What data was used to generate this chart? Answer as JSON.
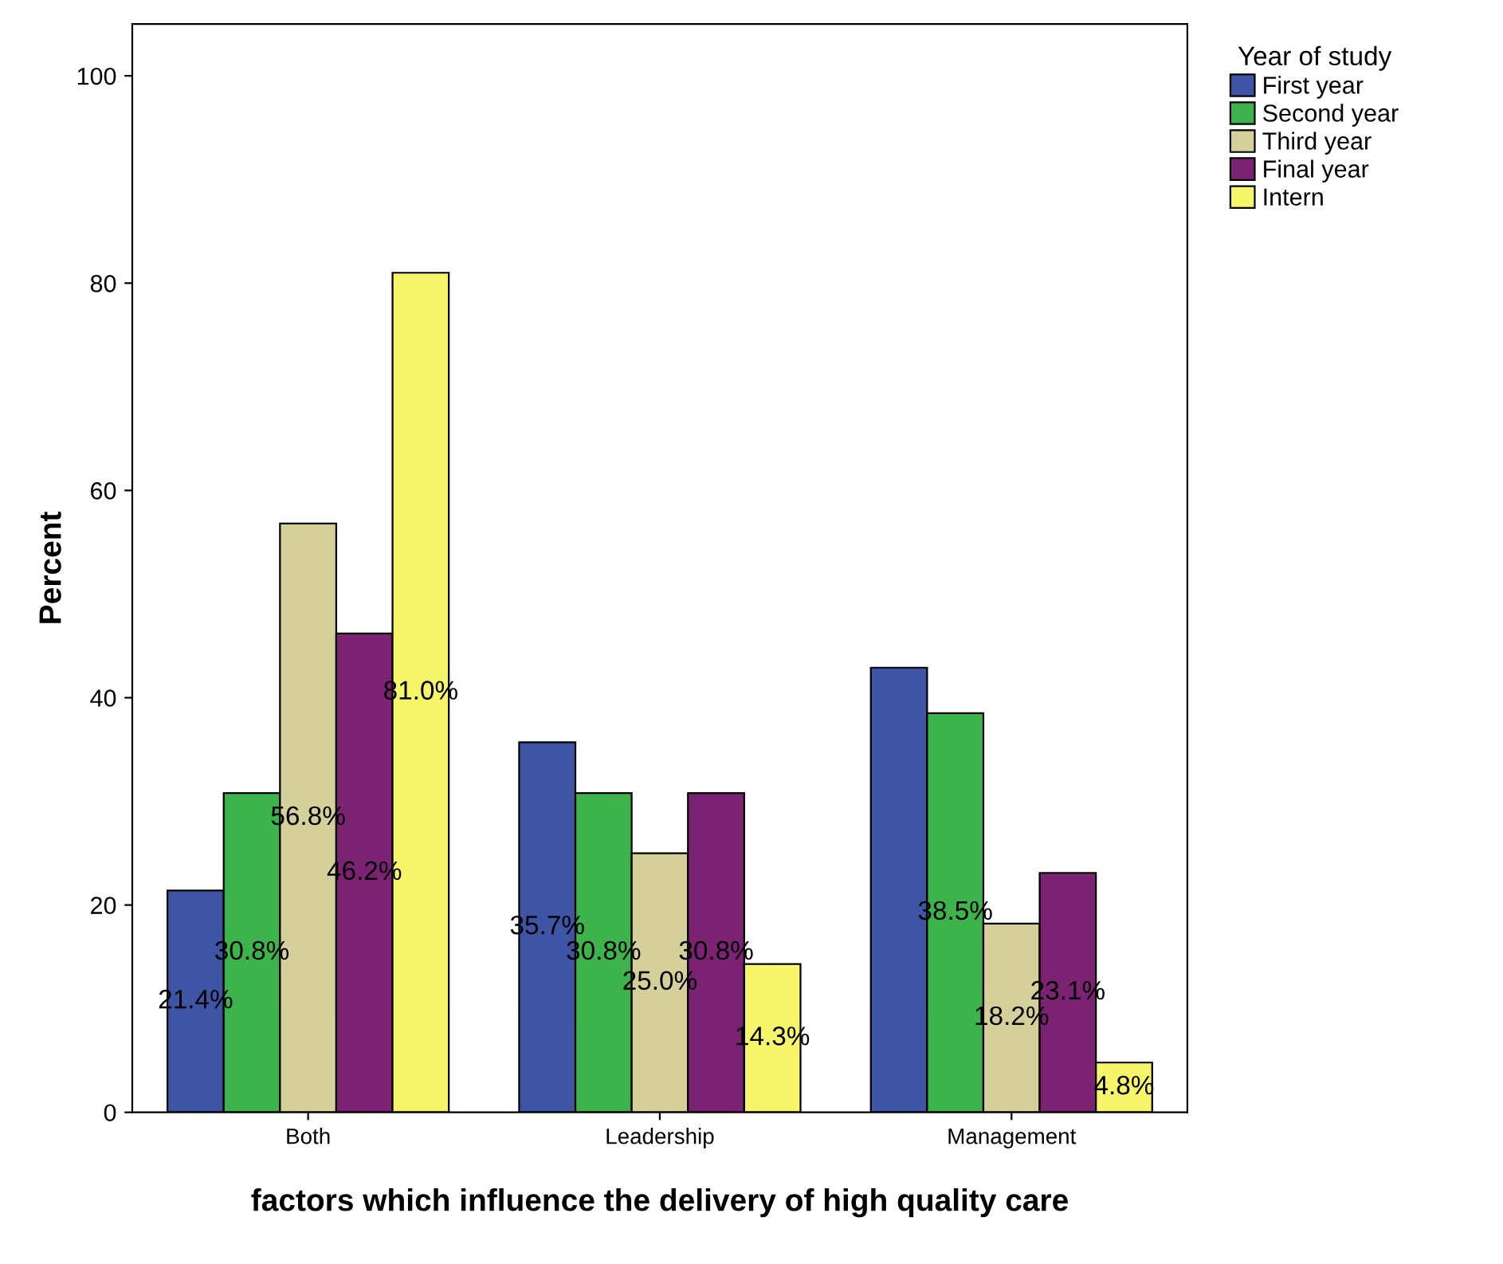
{
  "chart_data": {
    "type": "bar",
    "xlabel": "factors which influence the delivery of high quality care",
    "ylabel": "Percent",
    "legend_title": "Year of study",
    "categories": [
      "Both",
      "Leadership",
      "Management"
    ],
    "series": [
      {
        "name": "First year",
        "color": "#3e55a5",
        "values": [
          21.4,
          35.7,
          42.9
        ],
        "value_labels": [
          "21.4%",
          "35.7%",
          null
        ]
      },
      {
        "name": "Second year",
        "color": "#3cb44b",
        "values": [
          30.8,
          30.8,
          38.5
        ],
        "value_labels": [
          "30.8%",
          "30.8%",
          "38.5%"
        ]
      },
      {
        "name": "Third year",
        "color": "#d5cf9a",
        "values": [
          56.8,
          25.0,
          18.2
        ],
        "value_labels": [
          "56.8%",
          "25.0%",
          "18.2%"
        ]
      },
      {
        "name": "Final year",
        "color": "#7b2372",
        "values": [
          46.2,
          30.8,
          23.1
        ],
        "value_labels": [
          "46.2%",
          "30.8%",
          "23.1%"
        ]
      },
      {
        "name": "Intern",
        "color": "#f7f569",
        "values": [
          81.0,
          14.3,
          4.8
        ],
        "value_labels": [
          "81.0%",
          "14.3%",
          "4.8%"
        ]
      }
    ],
    "ylim": [
      0,
      105
    ],
    "yticks": [
      0,
      20,
      40,
      60,
      80,
      100
    ],
    "grid": false,
    "legend": "top right"
  }
}
